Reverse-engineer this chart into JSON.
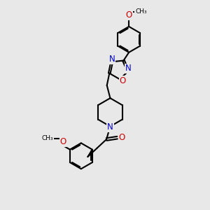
{
  "bg_color": "#e8e8e8",
  "bond_color": "#000000",
  "N_color": "#0000cc",
  "O_color": "#cc0000",
  "line_width": 1.5,
  "font_size": 8.5,
  "fig_size": [
    3.0,
    3.0
  ],
  "dpi": 100,
  "xlim": [
    0,
    10
  ],
  "ylim": [
    0,
    10
  ]
}
